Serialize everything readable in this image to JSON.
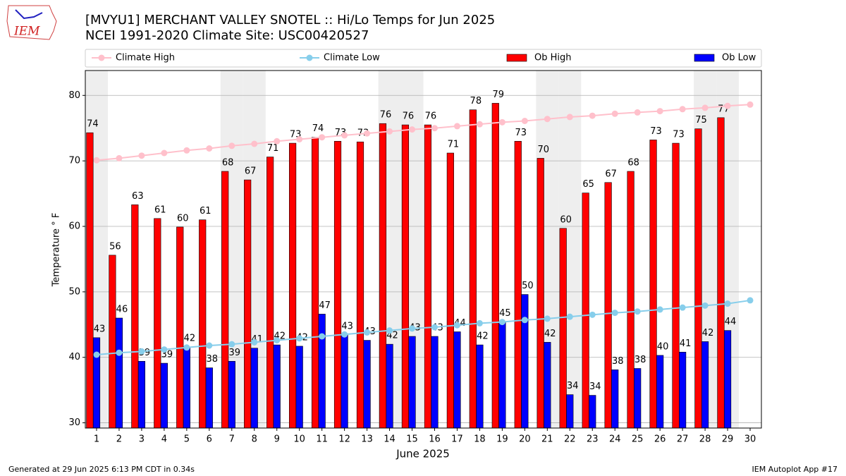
{
  "logo": "IEM",
  "footer": {
    "left": "Generated at 29 Jun 2025 6:13 PM CDT in 0.34s",
    "right": "IEM Autoplot App #17"
  },
  "chart_data": {
    "type": "bar",
    "title": "[MVYU1] MERCHANT VALLEY SNOTEL :: Hi/Lo Temps for Jun 2025",
    "subtitle": "NCEI 1991-2020 Climate Site: USC00420527",
    "x_label": "June 2025",
    "y_label": "Temperature ° F",
    "x": [
      1,
      2,
      3,
      4,
      5,
      6,
      7,
      8,
      9,
      10,
      11,
      12,
      13,
      14,
      15,
      16,
      17,
      18,
      19,
      20,
      21,
      22,
      23,
      24,
      25,
      26,
      27,
      28,
      29,
      30
    ],
    "xlim": [
      0.5,
      30.5
    ],
    "xticks": [
      1,
      2,
      3,
      4,
      5,
      6,
      7,
      8,
      9,
      10,
      11,
      12,
      13,
      14,
      15,
      16,
      17,
      18,
      19,
      20,
      21,
      22,
      23,
      24,
      25,
      26,
      27,
      28,
      29,
      30
    ],
    "ylim": [
      29.2,
      83.8
    ],
    "yticks": [
      30,
      40,
      50,
      60,
      70,
      80
    ],
    "grid": true,
    "shaded_x": [
      1,
      7,
      8,
      14,
      15,
      21,
      22,
      28,
      29
    ],
    "shade_color": "#eeeeee",
    "series": [
      {
        "name": "Climate High",
        "type": "line",
        "color": "#ffc0cb",
        "values": [
          70.1,
          70.4,
          70.8,
          71.2,
          71.6,
          71.9,
          72.3,
          72.6,
          73.0,
          73.3,
          73.6,
          73.9,
          74.2,
          74.5,
          74.8,
          75.0,
          75.3,
          75.6,
          75.9,
          76.1,
          76.4,
          76.7,
          76.9,
          77.2,
          77.4,
          77.6,
          77.9,
          78.1,
          78.4,
          78.6
        ]
      },
      {
        "name": "Climate Low",
        "type": "line",
        "color": "#87ceeb",
        "values": [
          40.4,
          40.7,
          40.9,
          41.2,
          41.5,
          41.8,
          42.0,
          42.3,
          42.6,
          42.9,
          43.2,
          43.5,
          43.8,
          44.1,
          44.4,
          44.6,
          44.9,
          45.2,
          45.4,
          45.7,
          45.9,
          46.2,
          46.5,
          46.8,
          47.0,
          47.3,
          47.6,
          47.9,
          48.2,
          48.7
        ]
      },
      {
        "name": "Ob High",
        "type": "bar",
        "color": "#ff0000",
        "offset": [
          -0.45,
          -0.15
        ],
        "values": [
          74.3,
          55.6,
          63.3,
          61.2,
          59.9,
          61.0,
          68.4,
          67.1,
          70.6,
          72.7,
          73.6,
          73.0,
          72.9,
          75.7,
          75.5,
          75.5,
          71.2,
          77.8,
          78.8,
          73.0,
          70.4,
          59.7,
          65.1,
          66.7,
          68.4,
          73.2,
          72.7,
          74.9,
          76.6,
          null
        ],
        "value_labels": [
          "74",
          "56",
          "63",
          "61",
          "60",
          "61",
          "68",
          "67",
          "71",
          "73",
          "74",
          "73",
          "73",
          "76",
          "76",
          "76",
          "71",
          "78",
          "79",
          "73",
          "70",
          "60",
          "65",
          "67",
          "68",
          "73",
          "73",
          "75",
          "77",
          null
        ]
      },
      {
        "name": "Ob Low",
        "type": "bar",
        "color": "#0000ff",
        "offset": [
          -0.15,
          0.15
        ],
        "values": [
          43.0,
          46.0,
          39.4,
          39.1,
          41.6,
          38.4,
          39.4,
          41.4,
          41.9,
          41.7,
          46.6,
          43.4,
          42.6,
          42.0,
          43.2,
          43.2,
          43.9,
          41.9,
          45.4,
          49.6,
          42.3,
          34.3,
          34.2,
          38.1,
          38.3,
          40.3,
          40.8,
          42.4,
          44.1,
          null
        ],
        "value_labels": [
          "43",
          "46",
          "39",
          "39",
          "42",
          "38",
          "39",
          "41",
          "42",
          "42",
          "47",
          "43",
          "43",
          "42",
          "43",
          "43",
          "44",
          "42",
          "45",
          "50",
          "42",
          "34",
          "34",
          "38",
          "38",
          "40",
          "41",
          "42",
          "44",
          null
        ]
      }
    ]
  }
}
